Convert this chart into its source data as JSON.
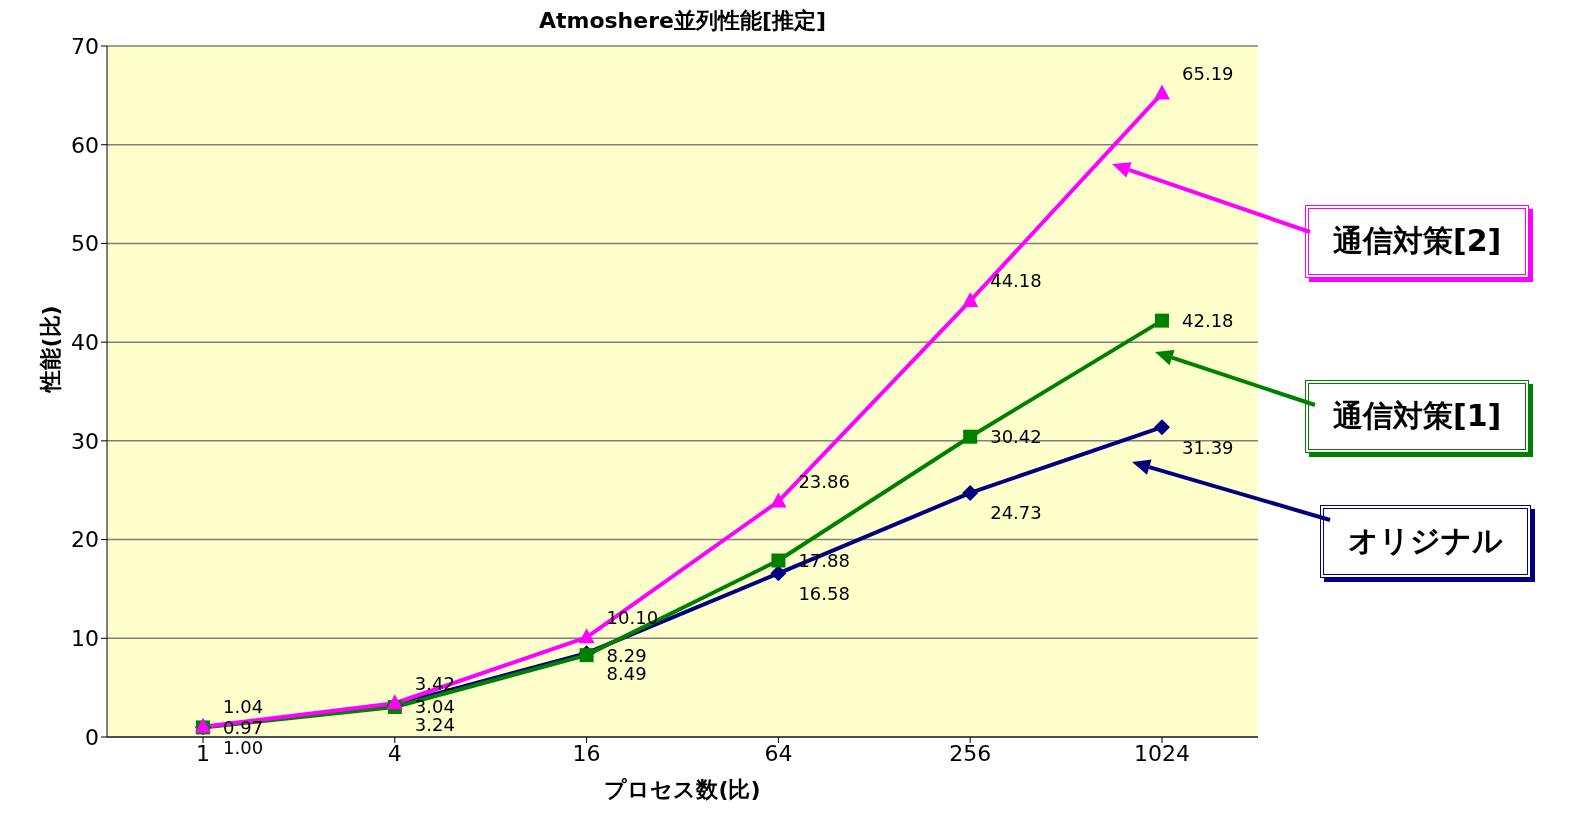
{
  "chart_data": {
    "type": "line",
    "title": "Atmoshere並列性能[推定]",
    "xlabel": "プロセス数(比)",
    "ylabel": "性能(比)",
    "categories": [
      "1",
      "4",
      "16",
      "64",
      "256",
      "1024"
    ],
    "series": [
      {
        "name": "オリジナル",
        "color": "#000080",
        "marker": "diamond",
        "values": [
          1.0,
          3.24,
          8.49,
          16.58,
          24.73,
          31.39
        ],
        "value_labels": [
          "1.00",
          "3.24",
          "8.49",
          "16.58",
          "24.73",
          "31.39"
        ]
      },
      {
        "name": "通信対策[1]",
        "color": "#008000",
        "marker": "square",
        "values": [
          0.97,
          3.04,
          8.29,
          17.88,
          30.42,
          42.18
        ],
        "value_labels": [
          "0.97",
          "3.04",
          "8.29",
          "17.88",
          "30.42",
          "42.18"
        ]
      },
      {
        "name": "通信対策[2]",
        "color": "#ff00ff",
        "marker": "triangle",
        "values": [
          1.04,
          3.42,
          10.1,
          23.86,
          44.18,
          65.19
        ],
        "value_labels": [
          "1.04",
          "3.42",
          "10.10",
          "23.86",
          "44.18",
          "65.19"
        ]
      }
    ],
    "ylim": [
      0,
      70
    ],
    "yticks": [
      0,
      10,
      20,
      30,
      40,
      50,
      60,
      70
    ],
    "grid": "y",
    "legend": "right"
  }
}
